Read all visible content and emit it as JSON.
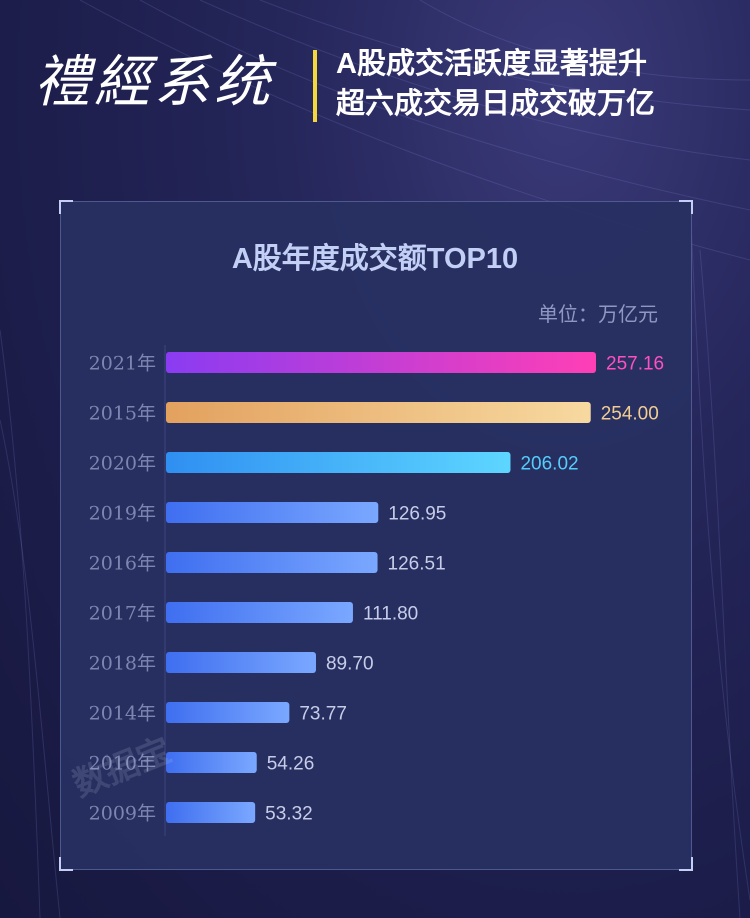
{
  "header": {
    "logo": "禮經系统",
    "headline_line1": "A股成交活跃度显著提升",
    "headline_line2": "超六成交易日成交破万亿"
  },
  "watermark": "数据宝",
  "chart_data": {
    "type": "bar",
    "orientation": "horizontal",
    "title": "A股年度成交额TOP10",
    "unit_label": "单位：万亿元",
    "categories": [
      "2021年",
      "2015年",
      "2020年",
      "2019年",
      "2016年",
      "2017年",
      "2018年",
      "2014年",
      "2010年",
      "2009年"
    ],
    "values": [
      257.16,
      254.0,
      206.02,
      126.95,
      126.51,
      111.8,
      89.7,
      73.77,
      54.26,
      53.32
    ],
    "value_labels": [
      "257.16",
      "254.00",
      "206.02",
      "126.95",
      "126.51",
      "111.80",
      "89.70",
      "73.77",
      "54.26",
      "53.32"
    ],
    "xlim": [
      0,
      257.16
    ],
    "grid": false,
    "legend": "none",
    "colors": {
      "bar_default_start": "#3f6ef0",
      "bar_default_end": "#7aa8ff",
      "bar_2021_start": "#8a3cf2",
      "bar_2021_end": "#ff3fb6",
      "bar_2015_start": "#e3a15e",
      "bar_2015_end": "#f7d9a0",
      "bar_2020_start": "#2f8ff2",
      "bar_2020_end": "#5dd6ff",
      "label_2021": "#ff4fc0",
      "label_2015": "#f2cd92",
      "label_2020": "#55cdfb",
      "label_default": "#c7cde8",
      "category_label": "#7d86b0",
      "title": "#c3cff5",
      "headline": "#ffffff",
      "divider": "#f5d93a"
    }
  }
}
